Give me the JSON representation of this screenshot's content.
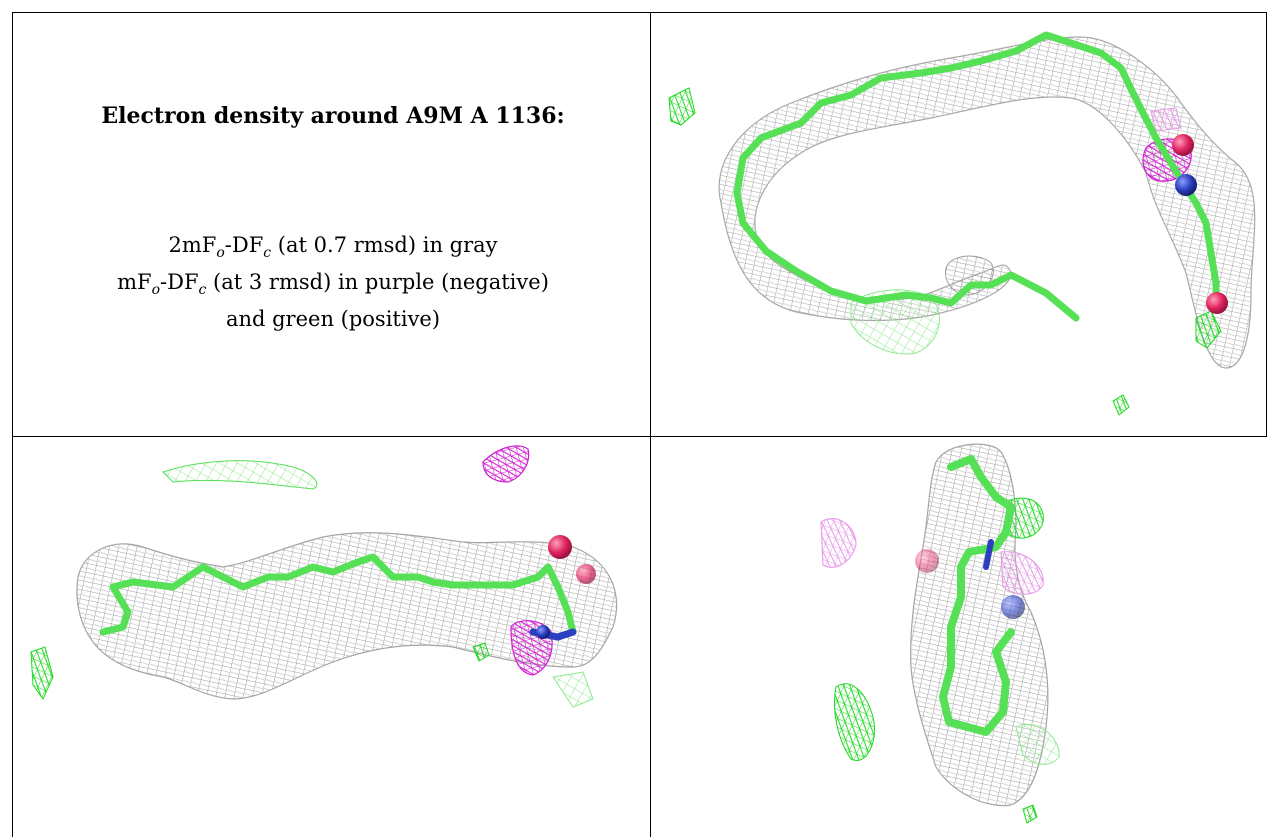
{
  "caption": {
    "title": "Electron density around A9M A 1136:",
    "line1": {
      "prefix": "2mF",
      "sub1": "o",
      "mid": "-DF",
      "sub2": "c",
      "suffix": " (at 0.7 rmsd) in gray"
    },
    "line2": {
      "prefix": "mF",
      "sub1": "o",
      "mid": "-DF",
      "sub2": "c",
      "suffix": " (at 3 rmsd) in purple (negative)"
    },
    "line3": "and green (positive)"
  },
  "colors": {
    "gray_mesh": "#9a9a9a",
    "ligand_green": "#55e055",
    "positive_green": "#1fd81f",
    "negative_purple": "#d21ed2",
    "oxygen_red": "#e0245e",
    "nitrogen_blue": "#2b3fc0"
  },
  "panels": [
    {
      "name": "view-top-right"
    },
    {
      "name": "view-bottom-left"
    },
    {
      "name": "view-bottom-right"
    }
  ]
}
